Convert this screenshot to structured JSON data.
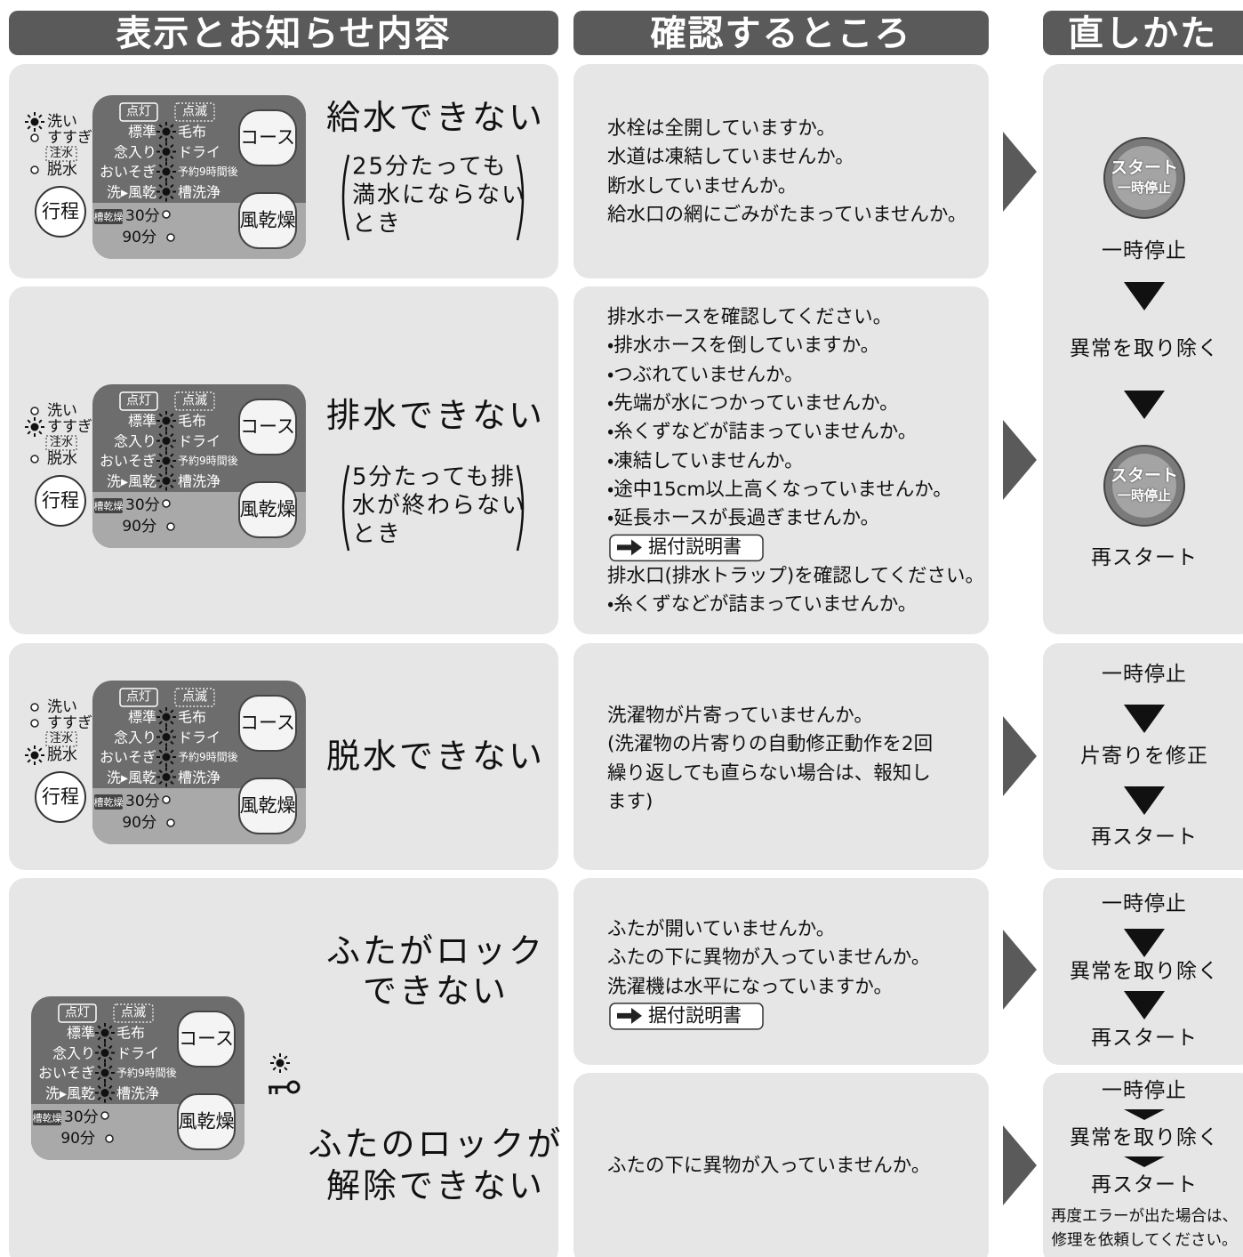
{
  "headers": [
    "表示とお知らせ内容",
    "確認するところ",
    "直しかた"
  ],
  "panel": {
    "wash": "洗い",
    "rinse": "すすぎ",
    "water_fill": "注水",
    "spin": "脱水",
    "process_button": "行程",
    "lit": "点灯",
    "blink": "点滅",
    "standard": "標準",
    "blanket": "毛布",
    "careful": "念入り",
    "dry": "ドライ",
    "quick": "おいそぎ",
    "reserve": "予約9時間後",
    "wash_airdry": "洗▸風乾",
    "tub_clean": "槽洗浄",
    "tub_dry": "槽乾燥",
    "min30": "30分",
    "min90": "90分",
    "course_button": "コース",
    "airdry_button": "風乾燥"
  },
  "start_button": [
    "スタート",
    "一時停止"
  ],
  "rows": [
    {
      "title": [
        "給水できない"
      ],
      "note": [
        "25分たっても",
        "満水にならない",
        "とき"
      ],
      "checks": [
        {
          "text": "水栓は全開していますか。"
        },
        {
          "text": "水道は凍結していませんか。"
        },
        {
          "text": "断水していませんか。"
        },
        {
          "text": "給水口の網にごみがたまっていませんか。"
        }
      ]
    },
    {
      "title": [
        "排水できない"
      ],
      "note": [
        "5分たっても排",
        "水が終わらない",
        "とき"
      ],
      "checks": [
        {
          "text": "排水ホースを確認してください。"
        },
        {
          "text": "・排水ホースを倒していますか。"
        },
        {
          "text": "・つぶれていませんか。"
        },
        {
          "text": "・先端が水につかっていませんか。"
        },
        {
          "text": "・糸くずなどが詰まっていませんか。"
        },
        {
          "text": "・凍結していませんか。"
        },
        {
          "text": "・途中15cm以上高くなっていませんか。"
        },
        {
          "text": "・延長ホースが長過ぎませんか。"
        },
        {
          "ref": "据付説明書"
        },
        {
          "text": "排水口(排水トラップ)を確認してください。"
        },
        {
          "text": "・糸くずなどが詰まっていませんか。"
        }
      ]
    },
    {
      "title": [
        "脱水できない"
      ],
      "checks": [
        {
          "text": "洗濯物が片寄っていませんか。"
        },
        {
          "text": "(洗濯物の片寄りの自動修正動作を2回"
        },
        {
          "text": "繰り返しても直らない場合は、報知し"
        },
        {
          "text": "ます)"
        }
      ]
    },
    {
      "title": [
        "ふたがロック",
        "できない"
      ],
      "checks": [
        {
          "text": "ふたが開いていませんか。"
        },
        {
          "text": "ふたの下に異物が入っていませんか。"
        },
        {
          "text": "洗濯機は水平になっていますか。"
        },
        {
          "ref": "据付説明書"
        }
      ]
    },
    {
      "title": [
        "ふたのロックが",
        "解除できない"
      ],
      "checks": [
        {
          "text": "ふたの下に異物が入っていませんか。"
        }
      ]
    }
  ],
  "remedies": [
    {
      "steps": [
        "一時停止",
        "異常を取り除く",
        "再スタート"
      ]
    },
    {
      "steps": [
        "一時停止",
        "片寄りを修正",
        "再スタート"
      ]
    },
    {
      "steps": [
        "一時停止",
        "異常を取り除く",
        "再スタート"
      ]
    },
    {
      "steps": [
        "一時停止",
        "異常を取り除く",
        "再スタート"
      ],
      "note": [
        "再度エラーが出た場合は、",
        "修理を依頼してください。"
      ]
    }
  ]
}
